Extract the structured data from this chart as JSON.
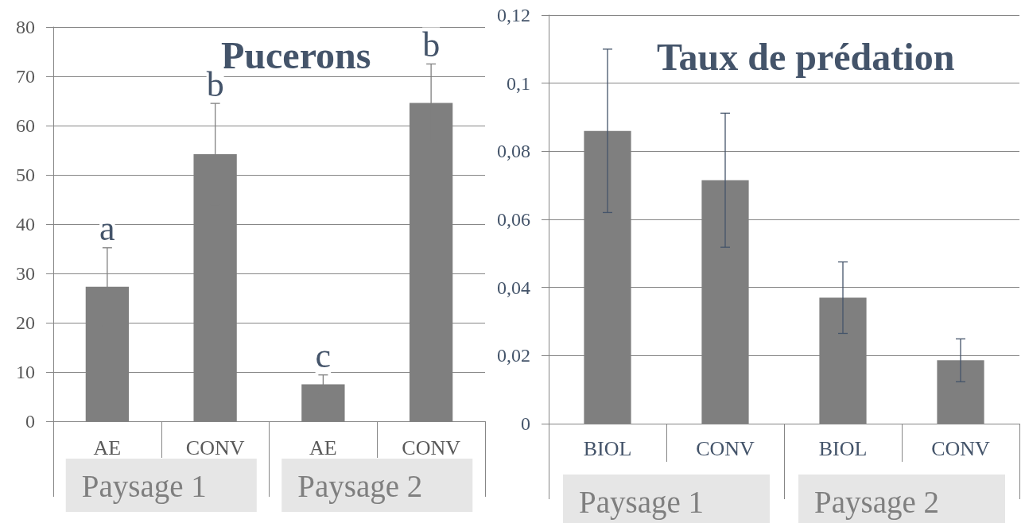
{
  "chart_data": [
    {
      "type": "bar",
      "title": "Pucerons",
      "categories": [
        "AE",
        "CONV",
        "AE",
        "CONV"
      ],
      "values": [
        27.3,
        54.2,
        7.5,
        64.6
      ],
      "errors": [
        7.9,
        10.3,
        1.9,
        7.9
      ],
      "value_labels": [
        "a",
        "b",
        "c",
        "b"
      ],
      "color": "#7f7f7f",
      "ylim": [
        0,
        80
      ],
      "yticks": [
        0,
        10,
        20,
        30,
        40,
        50,
        60,
        70,
        80
      ],
      "grid": "y",
      "annotations": [
        "Paysage 1",
        "Paysage 2"
      ]
    },
    {
      "type": "bar",
      "title": "Taux de prédation",
      "categories": [
        "BIOL",
        "CONV",
        "BIOL",
        "CONV"
      ],
      "values": [
        0.086,
        0.0715,
        0.037,
        0.0186
      ],
      "errors": [
        0.024,
        0.0197,
        0.0105,
        0.0063
      ],
      "color": "#7f7f7f",
      "ylim": [
        0,
        0.12
      ],
      "yticks": [
        0,
        {
          "value": 0.02,
          "label": "0,02"
        },
        {
          "value": 0.04,
          "label": "0,04"
        },
        {
          "value": 0.06,
          "label": "0,06"
        },
        {
          "value": 0.08,
          "label": "0,08"
        },
        {
          "value": 0.1,
          "label": "0,1"
        },
        {
          "value": 0.12,
          "label": "0,12"
        }
      ],
      "grid": "y",
      "annotations": [
        "Paysage 1",
        "Paysage 2"
      ]
    }
  ]
}
